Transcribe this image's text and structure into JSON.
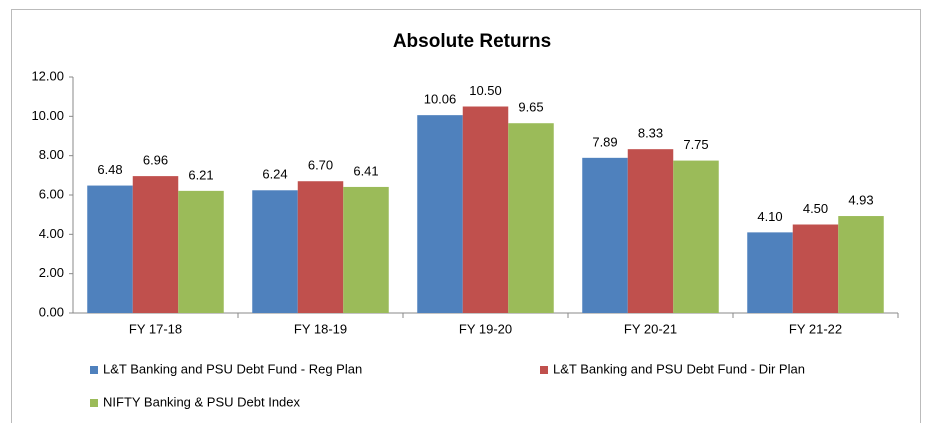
{
  "chart_data": {
    "type": "bar",
    "title": "Absolute Returns",
    "categories": [
      "FY 17-18",
      "FY 18-19",
      "FY 19-20",
      "FY 20-21",
      "FY 21-22"
    ],
    "series": [
      {
        "name": "L&T Banking and PSU Debt Fund - Reg Plan",
        "color": "#4f81bd",
        "values": [
          6.48,
          6.24,
          10.06,
          7.89,
          4.1
        ],
        "value_labels": [
          "6.48",
          "6.24",
          "10.06",
          "7.89",
          "4.10"
        ]
      },
      {
        "name": "L&T Banking and PSU Debt Fund - Dir Plan",
        "color": "#c0504d",
        "values": [
          6.96,
          6.7,
          10.5,
          8.33,
          4.5
        ],
        "value_labels": [
          "6.96",
          "6.70",
          "10.50",
          "8.33",
          "4.50"
        ]
      },
      {
        "name": "NIFTY Banking & PSU Debt Index",
        "color": "#9bbb59",
        "values": [
          6.21,
          6.41,
          9.65,
          7.75,
          4.93
        ],
        "value_labels": [
          "6.21",
          "6.41",
          "9.65",
          "7.75",
          "4.93"
        ]
      }
    ],
    "ylim": [
      0,
      12
    ],
    "yticks": [
      {
        "value": 0,
        "label": "0.00"
      },
      {
        "value": 2,
        "label": "2.00"
      },
      {
        "value": 4,
        "label": "4.00"
      },
      {
        "value": 6,
        "label": "6.00"
      },
      {
        "value": 8,
        "label": "8.00"
      },
      {
        "value": 10,
        "label": "10.00"
      },
      {
        "value": 12,
        "label": "12.00"
      }
    ],
    "grid": false,
    "legend": "bottom"
  }
}
